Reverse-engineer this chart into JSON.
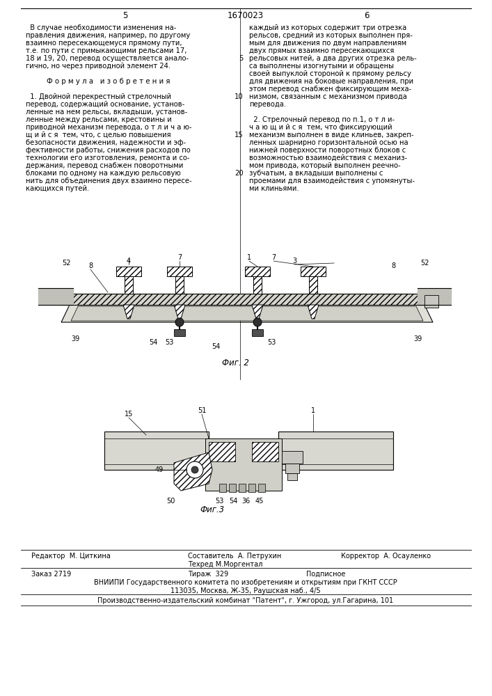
{
  "bg_color": "#ffffff",
  "page_num_left": "5",
  "page_title": "1670023",
  "page_num_right": "6",
  "left_col_text": [
    "  В случае необходимости изменения на-",
    "правления движения, например, по другому",
    "взаимно пересекающемуся прямому пути,",
    "т.е. по пути с примыкающими рельсами 17,",
    "18 и 19, 20, перевод осуществляется анало-",
    "гично, но через приводной элемент 24.",
    "",
    "Ф о р м у л а   и з о б р е т е н и я",
    "",
    "  1. Двойной перекрестный стрелочный",
    "перевод, содержащий основание, установ-",
    "ленные на нем рельсы, вкладыши, установ-",
    "ленные между рельсами, крестовины и",
    "приводной механизм перевода, о т л и ч а ю-",
    "щ и й с я  тем, что, с целью повышения",
    "безопасности движения, надежности и эф-",
    "фективности работы, снижения расходов по",
    "технологии его изготовления, ремонта и со-",
    "держания, перевод снабжен поворотными",
    "блоками по одному на каждую рельсовую",
    "нить для объединения двух взаимно пересе-",
    "кающихся путей."
  ],
  "right_col_text": [
    "каждый из которых содержит три отрезка",
    "рельсов, средний из которых выполнен пря-",
    "мым для движения по двум направлениям",
    "двух прямых взаимно пересекающихся",
    "рельсовых нитей, а два других отрезка рель-",
    "са выполнены изогнутыми и обращены",
    "своей выпуклой стороной к прямому рельсу",
    "для движения на боковые направления, при",
    "этом перевод снабжен фиксирующим меха-",
    "низмом, связанным с механизмом привода",
    "перевода.",
    "",
    "  2. Стрелочный перевод по п.1, о т л и-",
    "ч а ю щ и й с я  тем, что фиксирующий",
    "механизм выполнен в виде клиньев, закреп-",
    "ленных шарнирно горизонтальной осью на",
    "нижней поверхности поворотных блоков с",
    "возможностью взаимодействия с механиз-",
    "мом привода, который выполнен реечно-",
    "зубчатым, а вкладыши выполнены с",
    "проемами для взаимодействия с упомянуты-",
    "ми клиньями."
  ],
  "fig2_caption": "Фиг. 2",
  "fig3_caption": "Фиг.3",
  "footer_editor": "Редактор  М. Циткина",
  "footer_composer": "Составитель  А. Петрухин",
  "footer_corrector": "Корректор  А. Осауленко",
  "footer_techred": "Техред М.Моргентал",
  "footer_order": "Заказ 2719",
  "footer_print": "Тираж  329",
  "footer_signed": "Подписное",
  "footer_vniiipi": "ВНИИПИ Государственного комитета по изобретениям и открытиям при ГКНТ СССР",
  "footer_address": "113035, Москва, Ж-35, Раушская наб., 4/5",
  "footer_production": "Производственно-издательский комбинат \"Патент\", г. Ужгород, ул.Гагарина, 101",
  "line_numbers": [
    "5",
    "10",
    "15",
    "20"
  ]
}
